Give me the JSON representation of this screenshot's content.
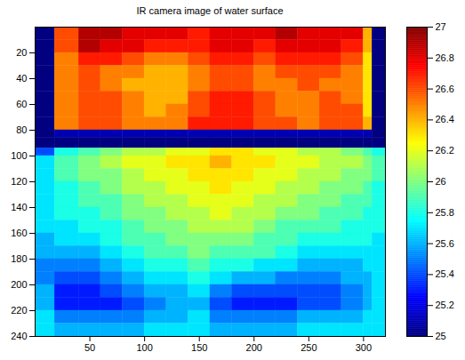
{
  "chart_data": {
    "type": "heatmap",
    "title": "IR camera image of water surface",
    "color": "jet",
    "x_edges": [
      0,
      18,
      40,
      60,
      80,
      100,
      120,
      140,
      160,
      180,
      200,
      220,
      240,
      260,
      280,
      300,
      308,
      320
    ],
    "y_edges": [
      0,
      10,
      20,
      30,
      40,
      50,
      60,
      70,
      80,
      86,
      94,
      100,
      110,
      120,
      130,
      140,
      150,
      160,
      170,
      180,
      190,
      200,
      210,
      220,
      230,
      240
    ],
    "values": [
      [
        25.0,
        26.6,
        26.9,
        26.9,
        26.8,
        26.8,
        26.8,
        26.7,
        26.8,
        26.8,
        26.8,
        26.9,
        26.8,
        26.8,
        26.8,
        26.4,
        25.0
      ],
      [
        25.0,
        26.6,
        26.9,
        26.8,
        26.8,
        26.7,
        26.7,
        26.7,
        26.8,
        26.8,
        26.7,
        26.8,
        26.8,
        26.8,
        26.7,
        26.4,
        25.0
      ],
      [
        25.0,
        26.5,
        26.7,
        26.7,
        26.6,
        26.5,
        26.5,
        26.6,
        26.7,
        26.7,
        26.6,
        26.7,
        26.7,
        26.7,
        26.6,
        26.3,
        25.0
      ],
      [
        25.0,
        26.5,
        26.6,
        26.5,
        26.5,
        26.4,
        26.4,
        26.5,
        26.6,
        26.6,
        26.5,
        26.6,
        26.6,
        26.6,
        26.5,
        26.3,
        25.0
      ],
      [
        25.0,
        26.5,
        26.6,
        26.5,
        26.4,
        26.4,
        26.4,
        26.5,
        26.6,
        26.6,
        26.5,
        26.5,
        26.6,
        26.5,
        26.5,
        26.3,
        25.0
      ],
      [
        25.0,
        26.5,
        26.6,
        26.6,
        26.5,
        26.4,
        26.4,
        26.6,
        26.7,
        26.7,
        26.6,
        26.5,
        26.5,
        26.6,
        26.5,
        26.3,
        25.0
      ],
      [
        25.0,
        26.5,
        26.6,
        26.6,
        26.5,
        26.4,
        26.5,
        26.6,
        26.7,
        26.7,
        26.6,
        26.5,
        26.5,
        26.6,
        26.6,
        26.3,
        25.0
      ],
      [
        25.0,
        26.5,
        26.6,
        26.6,
        26.5,
        26.5,
        26.5,
        26.7,
        26.7,
        26.7,
        26.6,
        26.6,
        26.5,
        26.6,
        26.6,
        26.4,
        25.0
      ],
      [
        25.0,
        25.1,
        25.1,
        25.1,
        25.1,
        25.1,
        25.1,
        25.1,
        25.1,
        25.1,
        25.1,
        25.1,
        25.1,
        25.1,
        25.1,
        25.1,
        25.0
      ],
      [
        25.0,
        25.0,
        25.0,
        25.0,
        25.0,
        25.0,
        25.0,
        25.0,
        25.0,
        25.0,
        25.0,
        25.0,
        25.0,
        25.0,
        25.0,
        25.0,
        25.0
      ],
      [
        25.4,
        25.8,
        25.9,
        26.0,
        26.1,
        26.1,
        26.2,
        26.2,
        26.3,
        26.3,
        26.2,
        26.2,
        26.1,
        26.1,
        26.0,
        25.9,
        25.8
      ],
      [
        25.7,
        25.9,
        26.0,
        26.1,
        26.2,
        26.2,
        26.3,
        26.3,
        26.4,
        26.3,
        26.3,
        26.2,
        26.2,
        26.1,
        26.1,
        26.0,
        25.9
      ],
      [
        25.7,
        25.9,
        26.0,
        26.0,
        26.1,
        26.2,
        26.2,
        26.3,
        26.3,
        26.3,
        26.2,
        26.2,
        26.1,
        26.1,
        26.0,
        26.0,
        25.9
      ],
      [
        25.7,
        25.8,
        25.9,
        26.0,
        26.1,
        26.1,
        26.2,
        26.2,
        26.3,
        26.2,
        26.2,
        26.1,
        26.1,
        26.0,
        26.0,
        25.9,
        25.8
      ],
      [
        25.7,
        25.8,
        25.9,
        25.9,
        26.0,
        26.1,
        26.1,
        26.2,
        26.2,
        26.2,
        26.1,
        26.1,
        26.0,
        26.0,
        25.9,
        25.9,
        25.8
      ],
      [
        25.7,
        25.8,
        25.8,
        25.9,
        26.0,
        26.0,
        26.1,
        26.1,
        26.2,
        26.1,
        26.1,
        26.0,
        26.0,
        25.9,
        25.9,
        25.8,
        25.8
      ],
      [
        25.7,
        25.7,
        25.8,
        25.8,
        25.9,
        26.0,
        26.0,
        26.1,
        26.1,
        26.1,
        26.0,
        25.9,
        25.9,
        25.9,
        25.8,
        25.8,
        25.8
      ],
      [
        25.6,
        25.7,
        25.7,
        25.8,
        25.9,
        25.9,
        26.0,
        26.0,
        26.0,
        26.0,
        25.9,
        25.9,
        25.8,
        25.8,
        25.8,
        25.8,
        25.7
      ],
      [
        25.6,
        25.6,
        25.6,
        25.7,
        25.8,
        25.9,
        25.9,
        26.0,
        25.9,
        25.9,
        25.9,
        25.8,
        25.7,
        25.7,
        25.7,
        25.7,
        25.7
      ],
      [
        25.5,
        25.5,
        25.5,
        25.6,
        25.7,
        25.8,
        25.8,
        25.9,
        25.8,
        25.8,
        25.7,
        25.7,
        25.6,
        25.6,
        25.6,
        25.7,
        25.7
      ],
      [
        25.5,
        25.4,
        25.4,
        25.5,
        25.6,
        25.7,
        25.7,
        25.8,
        25.7,
        25.6,
        25.6,
        25.5,
        25.5,
        25.5,
        25.6,
        25.6,
        25.7
      ],
      [
        25.6,
        25.3,
        25.3,
        25.4,
        25.5,
        25.6,
        25.6,
        25.7,
        25.5,
        25.4,
        25.4,
        25.4,
        25.4,
        25.4,
        25.5,
        25.6,
        25.7
      ],
      [
        25.6,
        25.3,
        25.3,
        25.3,
        25.4,
        25.5,
        25.6,
        25.6,
        25.4,
        25.3,
        25.3,
        25.3,
        25.4,
        25.4,
        25.5,
        25.6,
        25.7
      ],
      [
        25.7,
        25.5,
        25.5,
        25.5,
        25.5,
        25.6,
        25.6,
        25.7,
        25.5,
        25.5,
        25.5,
        25.5,
        25.6,
        25.6,
        25.6,
        25.7,
        25.7
      ],
      [
        25.7,
        25.6,
        25.6,
        25.6,
        25.6,
        25.7,
        25.7,
        25.7,
        25.6,
        25.6,
        25.6,
        25.6,
        25.7,
        25.7,
        25.7,
        25.7,
        25.7
      ]
    ],
    "xlim": [
      0,
      320
    ],
    "ylim": [
      240,
      0
    ],
    "xticks": [
      50,
      100,
      150,
      200,
      250,
      300
    ],
    "yticks": [
      20,
      40,
      60,
      80,
      100,
      120,
      140,
      160,
      180,
      200,
      220,
      240
    ],
    "colorbar_range": [
      25,
      27
    ],
    "colorbar_ticks": [
      25,
      25.2,
      25.4,
      25.6,
      25.8,
      26,
      26.2,
      26.4,
      26.6,
      26.8,
      27
    ]
  }
}
